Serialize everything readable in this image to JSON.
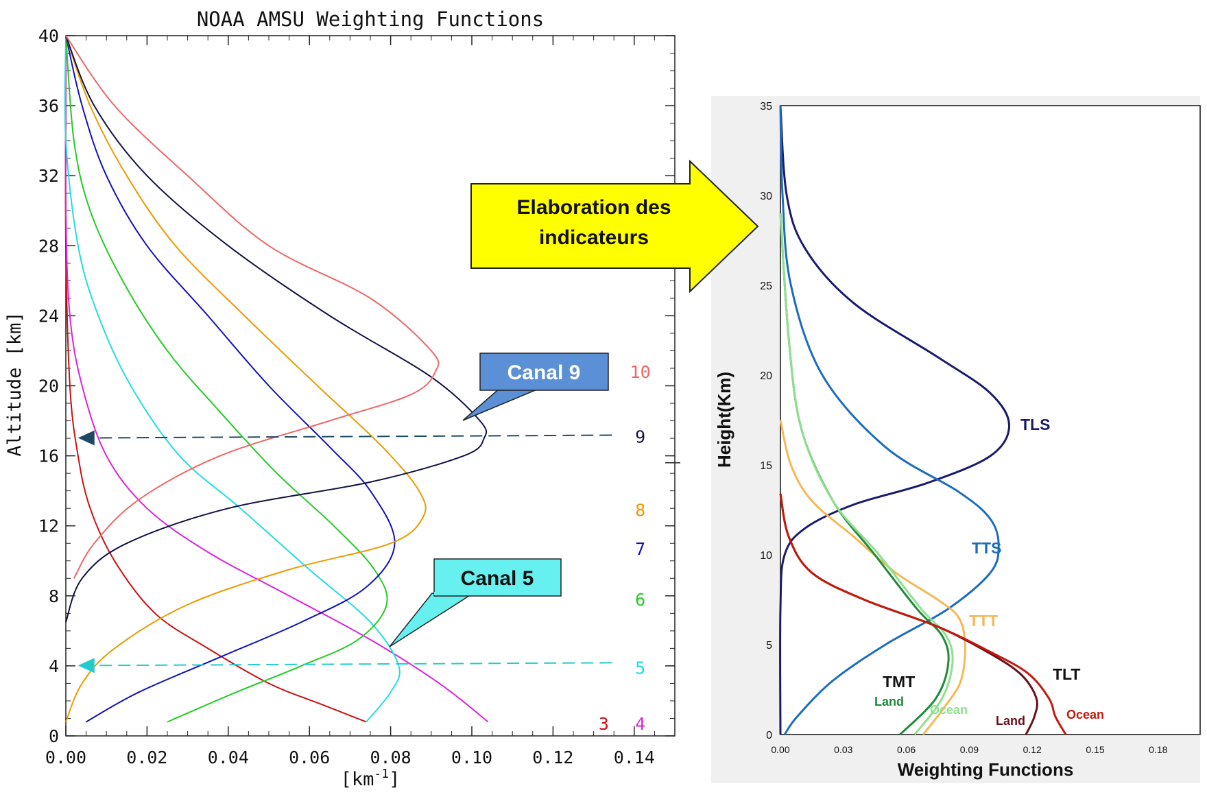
{
  "chart_data": [
    {
      "type": "line",
      "title": "NOAA AMSU Weighting Functions",
      "xlabel": "[km",
      "xlabel_sup": "-1",
      "xlabel_close": "]",
      "ylabel": "Altitude [km]",
      "xlim": [
        0,
        0.15
      ],
      "ylim": [
        0,
        40
      ],
      "xticks": [
        "0.00",
        "0.02",
        "0.04",
        "0.06",
        "0.08",
        "0.10",
        "0.12",
        "0.14"
      ],
      "yticks": [
        "0",
        "4",
        "8",
        "12",
        "16",
        "20",
        "24",
        "28",
        "32",
        "36",
        "40"
      ],
      "series": [
        {
          "name": "3",
          "color": "#cc1111",
          "points": [
            [
              0.0,
              40
            ],
            [
              0.0,
              28
            ],
            [
              0.001,
              20
            ],
            [
              0.003,
              16
            ],
            [
              0.006,
              13
            ],
            [
              0.012,
              10
            ],
            [
              0.022,
              7
            ],
            [
              0.035,
              5
            ],
            [
              0.05,
              3
            ],
            [
              0.063,
              1.8
            ],
            [
              0.074,
              0.8
            ]
          ]
        },
        {
          "name": "4",
          "color": "#dd22dd",
          "points": [
            [
              0.0,
              40
            ],
            [
              0.0,
              30
            ],
            [
              0.001,
              24
            ],
            [
              0.004,
              20
            ],
            [
              0.01,
              16
            ],
            [
              0.02,
              13
            ],
            [
              0.035,
              10.5
            ],
            [
              0.055,
              8
            ],
            [
              0.075,
              5.5
            ],
            [
              0.092,
              3
            ],
            [
              0.104,
              0.8
            ]
          ]
        },
        {
          "name": "5",
          "color": "#22dddd",
          "points": [
            [
              0.0,
              40
            ],
            [
              0.0,
              34
            ],
            [
              0.003,
              28
            ],
            [
              0.008,
              24
            ],
            [
              0.016,
              20
            ],
            [
              0.028,
              16
            ],
            [
              0.043,
              13
            ],
            [
              0.06,
              9.5
            ],
            [
              0.075,
              6.5
            ],
            [
              0.082,
              4
            ],
            [
              0.08,
              2.5
            ],
            [
              0.074,
              0.8
            ]
          ]
        },
        {
          "name": "6",
          "color": "#22cc22",
          "points": [
            [
              0.0,
              40
            ],
            [
              0.002,
              34
            ],
            [
              0.006,
              30
            ],
            [
              0.014,
              26
            ],
            [
              0.025,
              22
            ],
            [
              0.038,
              18.5
            ],
            [
              0.052,
              15
            ],
            [
              0.066,
              12
            ],
            [
              0.076,
              9.5
            ],
            [
              0.079,
              7.5
            ],
            [
              0.072,
              5.5
            ],
            [
              0.058,
              4
            ],
            [
              0.042,
              2.5
            ],
            [
              0.025,
              0.8
            ]
          ]
        },
        {
          "name": "7",
          "color": "#1111bb",
          "points": [
            [
              0.0,
              40
            ],
            [
              0.004,
              36
            ],
            [
              0.01,
              32
            ],
            [
              0.02,
              28
            ],
            [
              0.035,
              24
            ],
            [
              0.05,
              20
            ],
            [
              0.065,
              16.5
            ],
            [
              0.075,
              14
            ],
            [
              0.081,
              11
            ],
            [
              0.074,
              8.5
            ],
            [
              0.058,
              6.5
            ],
            [
              0.038,
              4.5
            ],
            [
              0.018,
              2.5
            ],
            [
              0.005,
              0.8
            ]
          ]
        },
        {
          "name": "8",
          "color": "#ee9900",
          "points": [
            [
              0.0,
              40
            ],
            [
              0.006,
              36
            ],
            [
              0.015,
              32
            ],
            [
              0.027,
              28
            ],
            [
              0.044,
              24
            ],
            [
              0.062,
              20
            ],
            [
              0.078,
              16.5
            ],
            [
              0.087,
              14
            ],
            [
              0.088,
              12.5
            ],
            [
              0.08,
              11
            ],
            [
              0.055,
              9.5
            ],
            [
              0.03,
              7.5
            ],
            [
              0.012,
              5
            ],
            [
              0.004,
              3
            ],
            [
              0.0,
              0.8
            ]
          ]
        },
        {
          "name": "9",
          "color": "#111144",
          "points": [
            [
              0.0,
              40
            ],
            [
              0.007,
              36
            ],
            [
              0.02,
              32
            ],
            [
              0.04,
              28
            ],
            [
              0.065,
              24
            ],
            [
              0.09,
              20.5
            ],
            [
              0.102,
              18
            ],
            [
              0.103,
              17
            ],
            [
              0.098,
              16
            ],
            [
              0.075,
              14.5
            ],
            [
              0.04,
              13
            ],
            [
              0.015,
              11
            ],
            [
              0.004,
              9
            ],
            [
              0.0,
              6.5
            ]
          ]
        },
        {
          "name": "10",
          "color": "#ee6666",
          "points": [
            [
              0.0,
              40
            ],
            [
              0.012,
              36
            ],
            [
              0.03,
              32
            ],
            [
              0.05,
              28
            ],
            [
              0.075,
              25
            ],
            [
              0.09,
              22
            ],
            [
              0.091,
              20.8
            ],
            [
              0.085,
              19.5
            ],
            [
              0.065,
              18
            ],
            [
              0.038,
              16
            ],
            [
              0.018,
              13.5
            ],
            [
              0.007,
              11
            ],
            [
              0.002,
              9
            ]
          ]
        }
      ],
      "references": [
        {
          "altitude": 17.1,
          "label": "9",
          "color": "#1c4a66"
        },
        {
          "altitude": 4.1,
          "label": "5",
          "color": "#22cccc"
        }
      ],
      "extra_labels": [
        {
          "text": "3",
          "color": "#cc1111"
        },
        {
          "text": "4",
          "color": "#dd22dd"
        }
      ],
      "callouts": [
        {
          "text": "Canal 9",
          "color": "#5b8fd6"
        },
        {
          "text": "Canal 5",
          "color": "#66f0f0"
        }
      ]
    },
    {
      "type": "line",
      "xlabel": "Weighting Functions",
      "ylabel": "Height(Km)",
      "xlim": [
        0,
        0.2
      ],
      "ylim": [
        0,
        35
      ],
      "xticks": [
        "0.00",
        "0.03",
        "0.06",
        "0.09",
        "0.12",
        "0.15",
        "0.18"
      ],
      "yticks": [
        "0",
        "5",
        "10",
        "15",
        "20",
        "25",
        "30",
        "35"
      ],
      "series": [
        {
          "name": "TLS",
          "color": "#1a1a6e",
          "points": [
            [
              0.0,
              35
            ],
            [
              0.003,
              30
            ],
            [
              0.012,
              27
            ],
            [
              0.035,
              24
            ],
            [
              0.075,
              21
            ],
            [
              0.1,
              19
            ],
            [
              0.109,
              17.2
            ],
            [
              0.1,
              15.5
            ],
            [
              0.07,
              14
            ],
            [
              0.035,
              12.8
            ],
            [
              0.012,
              11.5
            ],
            [
              0.002,
              10
            ],
            [
              0.0,
              7
            ],
            [
              0.0,
              0
            ]
          ]
        },
        {
          "name": "TTS",
          "color": "#1a6cc0",
          "points": [
            [
              0.0,
              35
            ],
            [
              0.001,
              30
            ],
            [
              0.005,
              25
            ],
            [
              0.02,
              20
            ],
            [
              0.05,
              16
            ],
            [
              0.085,
              13.5
            ],
            [
              0.1,
              12
            ],
            [
              0.104,
              10.5
            ],
            [
              0.1,
              9
            ],
            [
              0.08,
              7
            ],
            [
              0.05,
              5
            ],
            [
              0.025,
              3
            ],
            [
              0.008,
              1
            ],
            [
              0.002,
              0
            ]
          ]
        },
        {
          "name": "TTT",
          "color": "#f5b854",
          "points": [
            [
              0.0,
              17.5
            ],
            [
              0.005,
              15
            ],
            [
              0.015,
              13
            ],
            [
              0.035,
              11
            ],
            [
              0.055,
              9
            ],
            [
              0.075,
              7.5
            ],
            [
              0.085,
              6.5
            ],
            [
              0.088,
              5
            ],
            [
              0.086,
              3
            ],
            [
              0.078,
              1.5
            ],
            [
              0.068,
              0
            ]
          ]
        },
        {
          "name": "TMT Land",
          "color": "#1f8a3a",
          "points": [
            [
              0.0,
              29
            ],
            [
              0.004,
              22
            ],
            [
              0.01,
              17
            ],
            [
              0.025,
              13
            ],
            [
              0.045,
              10
            ],
            [
              0.065,
              7
            ],
            [
              0.077,
              5.5
            ],
            [
              0.08,
              4
            ],
            [
              0.074,
              2
            ],
            [
              0.057,
              0
            ]
          ]
        },
        {
          "name": "TMT Ocean",
          "color": "#8ee08e",
          "points": [
            [
              0.0,
              29
            ],
            [
              0.004,
              22
            ],
            [
              0.01,
              17
            ],
            [
              0.025,
              13
            ],
            [
              0.047,
              10
            ],
            [
              0.067,
              7
            ],
            [
              0.079,
              5.5
            ],
            [
              0.082,
              4
            ],
            [
              0.077,
              2
            ],
            [
              0.064,
              0
            ]
          ]
        },
        {
          "name": "TLT Land",
          "color": "#6b0f1a",
          "points": [
            [
              0.0,
              13.4
            ],
            [
              0.004,
              11
            ],
            [
              0.015,
              9
            ],
            [
              0.04,
              7.5
            ],
            [
              0.075,
              6
            ],
            [
              0.1,
              4.5
            ],
            [
              0.115,
              3.3
            ],
            [
              0.122,
              2
            ],
            [
              0.121,
              1
            ],
            [
              0.117,
              0
            ]
          ]
        },
        {
          "name": "TLT Ocean",
          "color": "#c21a0d",
          "points": [
            [
              0.0,
              13.4
            ],
            [
              0.004,
              11
            ],
            [
              0.015,
              9
            ],
            [
              0.04,
              7.5
            ],
            [
              0.075,
              6
            ],
            [
              0.1,
              4.6
            ],
            [
              0.118,
              3.4
            ],
            [
              0.128,
              2
            ],
            [
              0.131,
              1
            ],
            [
              0.136,
              0
            ]
          ]
        }
      ],
      "labels": [
        {
          "text": "TLS",
          "color": "#1a1a6e"
        },
        {
          "text": "TTS",
          "color": "#1a6cc0"
        },
        {
          "text": "TTT",
          "color": "#f5b854"
        },
        {
          "text": "TMT",
          "color": "#111111"
        },
        {
          "text": "Land",
          "color": "#1f8a3a"
        },
        {
          "text": "Ocean",
          "color": "#8ee08e"
        },
        {
          "text": "TLT",
          "color": "#111111"
        },
        {
          "text": "Land",
          "color": "#6b0f1a"
        },
        {
          "text": "Ocean",
          "color": "#c21a0d"
        }
      ]
    }
  ],
  "arrow_banner": {
    "line1": "Elaboration des",
    "line2": "indicateurs",
    "color": "#ffff00"
  }
}
